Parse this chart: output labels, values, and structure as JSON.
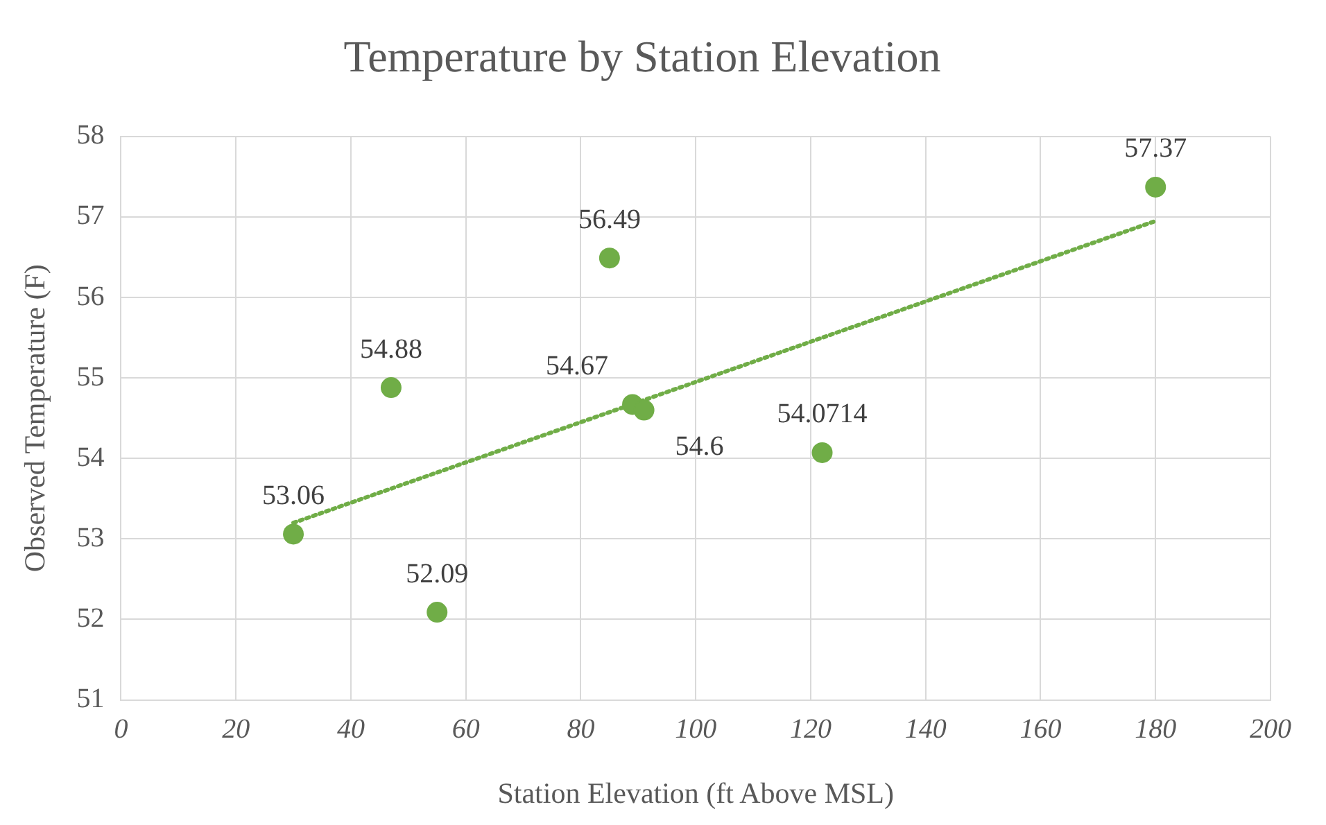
{
  "chart_data": {
    "type": "scatter",
    "title": "Temperature by Station Elevation",
    "xlabel": "Station Elevation (ft Above MSL)",
    "ylabel": "Observed Temperature (F)",
    "xlim": [
      0,
      200
    ],
    "xticks": [
      0,
      20,
      40,
      60,
      80,
      100,
      120,
      140,
      160,
      180,
      200
    ],
    "ylim": [
      51,
      58
    ],
    "yticks": [
      51,
      52,
      53,
      54,
      55,
      56,
      57,
      58
    ],
    "grid": true,
    "legend": false,
    "marker": "circle",
    "series": [
      {
        "type": "scatter",
        "color": "#70ad47",
        "x": [
          30,
          47,
          55,
          85,
          89,
          91,
          122,
          180
        ],
        "values": [
          53.06,
          54.88,
          52.09,
          56.49,
          54.67,
          54.6,
          54.0714,
          57.37
        ],
        "value_labels": [
          "53.06",
          "54.88",
          "52.09",
          "56.49",
          "54.67",
          "54.6",
          "54.0714",
          "57.37"
        ]
      },
      {
        "type": "line",
        "color": "#70ad47",
        "line_style": "dotted",
        "marker": "none",
        "x": [
          30,
          180
        ],
        "values": [
          53.2,
          56.95
        ]
      }
    ]
  }
}
